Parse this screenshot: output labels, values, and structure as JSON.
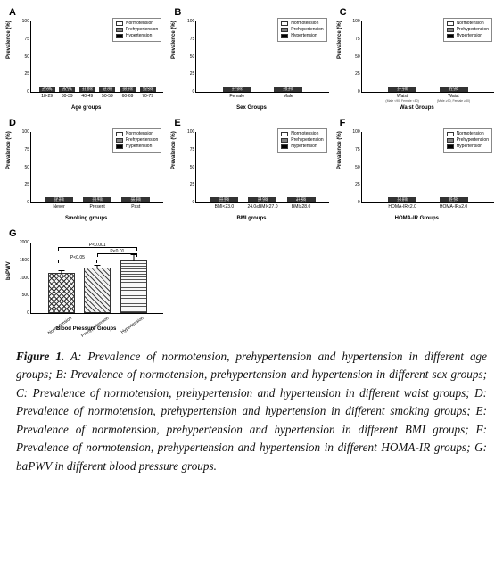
{
  "legend_items": [
    {
      "label": "Normotension",
      "color": "#ffffff"
    },
    {
      "label": "Prehypertension",
      "color": "#808080"
    },
    {
      "label": "Hypertension",
      "color": "#000000"
    }
  ],
  "yaxis_label": "Prevalence (%)",
  "yticks": [
    0,
    25,
    50,
    75,
    100
  ],
  "panelA": {
    "label": "A",
    "xaxis": "Age groups",
    "categories": [
      "18-29",
      "30-39",
      "40-49",
      "50-59",
      "60-69",
      "70-79"
    ],
    "series": [
      {
        "cat": "18-29",
        "normo": 73.4,
        "prehyp": 23.0,
        "hyp": 3.6,
        "labels": [
          "73.4%",
          "23.0%",
          "3.6%"
        ]
      },
      {
        "cat": "30-39",
        "normo": 61.5,
        "prehyp": 29.1,
        "hyp": 9.4,
        "labels": [
          "61.5%",
          "29.1%",
          "9.4%"
        ]
      },
      {
        "cat": "40-49",
        "normo": 51.0,
        "prehyp": 31.6,
        "hyp": 17.4,
        "labels": [
          "51.0%",
          "31.6%",
          "17.4%"
        ]
      },
      {
        "cat": "50-59",
        "normo": 42.1,
        "prehyp": 32.0,
        "hyp": 25.9,
        "labels": [
          "42.1%",
          "32.0%",
          "25.9%"
        ]
      },
      {
        "cat": "60-69",
        "normo": 36.3,
        "prehyp": 30.6,
        "hyp": 33.1,
        "labels": [
          "36.3%",
          "30.6%",
          "33.1%"
        ]
      },
      {
        "cat": "70-79",
        "normo": 31.5,
        "prehyp": 28.5,
        "hyp": 40.0,
        "labels": [
          "31.5%",
          "28.5%",
          "40.0%"
        ]
      }
    ]
  },
  "panelB": {
    "label": "B",
    "xaxis": "Sex Groups",
    "categories": [
      "Female",
      "Male"
    ],
    "series": [
      {
        "cat": "Female",
        "normo": 55.1,
        "prehyp": 21.9,
        "hyp": 23.0,
        "labels": [
          "55.1%",
          "21.9%",
          "23.0%"
        ]
      },
      {
        "cat": "Male",
        "normo": 46.5,
        "prehyp": 29.2,
        "hyp": 24.3,
        "labels": [
          "46.5%",
          "29.2%",
          "24.3%"
        ]
      }
    ]
  },
  "panelC": {
    "label": "C",
    "xaxis": "Waist Groups",
    "categories": [
      "Waist",
      "Waist"
    ],
    "sublabels": [
      "(Male <90, Female <80)",
      "(Male ≥90, Female ≥80)"
    ],
    "series": [
      {
        "cat": "Waist",
        "normo": 55.7,
        "prehyp": 27.1,
        "hyp": 17.2,
        "labels": [
          "55.7%",
          "27.1%",
          "17.2%"
        ]
      },
      {
        "cat": "Waist",
        "normo": 38.7,
        "prehyp": 31.3,
        "hyp": 30.0,
        "labels": [
          "38.7%",
          "31.3%",
          "30.0%"
        ]
      }
    ]
  },
  "panelD": {
    "label": "D",
    "xaxis": "Smoking groups",
    "categories": [
      "Never",
      "Present",
      "Past"
    ],
    "series": [
      {
        "cat": "Never",
        "normo": 44.5,
        "prehyp": 31.0,
        "hyp": 24.5,
        "labels": [
          "44.5%",
          "31.0%",
          "24.5%"
        ]
      },
      {
        "cat": "Present",
        "normo": 50.5,
        "prehyp": 28.7,
        "hyp": 20.8,
        "labels": [
          "50.5%",
          "28.7%",
          "20.8%"
        ]
      },
      {
        "cat": "Past",
        "normo": 46.8,
        "prehyp": 30.9,
        "hyp": 22.3,
        "labels": [
          "46.8%",
          "30.9%",
          "22.3%"
        ]
      }
    ]
  },
  "panelE": {
    "label": "E",
    "xaxis": "BMI groups",
    "categories": [
      "BMI<23.0",
      "24.0≤BMI<27.0",
      "BMI≥28.0"
    ],
    "series": [
      {
        "cat": "BMI<23.0",
        "normo": 55.0,
        "prehyp": 22.2,
        "hyp": 22.8,
        "labels": [
          "55.0%",
          "22.2%",
          "22.8%"
        ]
      },
      {
        "cat": "24.0≤BMI<27.0",
        "normo": 49.1,
        "prehyp": 27.3,
        "hyp": 23.6,
        "labels": [
          "49.1%",
          "27.3%",
          "23.6%"
        ]
      },
      {
        "cat": "BMI≥28.0",
        "normo": 40.7,
        "prehyp": 47.5,
        "hyp": 11.8,
        "labels": [
          "40.7%",
          "47.5%",
          "11.8%"
        ]
      }
    ]
  },
  "panelF": {
    "label": "F",
    "xaxis": "HOMA-IR Groups",
    "categories": [
      "HOMA-IR<2.0",
      "HOMA-IR≥2.0"
    ],
    "series": [
      {
        "cat": "HOMA-IR<2.0",
        "normo": 51.4,
        "prehyp": 29.6,
        "hyp": 19.0,
        "labels": [
          "51.4%",
          "29.6%",
          "19.0%"
        ]
      },
      {
        "cat": "HOMA-IR≥2.0",
        "normo": 21.3,
        "prehyp": 32.3,
        "hyp": 46.4,
        "labels": [
          "21.3%",
          "32.3%",
          "46.4%"
        ]
      }
    ]
  },
  "panelG": {
    "label": "G",
    "xaxis": "Blood Pressure Groups",
    "yaxis": "baPWV",
    "yticks": [
      0,
      500,
      1000,
      1500,
      2000
    ],
    "ylim": [
      0,
      2000
    ],
    "categories": [
      "Normotension",
      "Prehypertension",
      "Hypertension"
    ],
    "bars": [
      {
        "cat": "Normotension",
        "value": 1150,
        "err": 180,
        "pattern": "hatch-cross"
      },
      {
        "cat": "Prehypertension",
        "value": 1280,
        "err": 200,
        "pattern": "hatch-diag"
      },
      {
        "cat": "Hypertension",
        "value": 1500,
        "err": 260,
        "pattern": "hatch-horiz"
      }
    ],
    "sig": [
      {
        "from": 0,
        "to": 1,
        "text": "P<0.05",
        "y": 1520
      },
      {
        "from": 1,
        "to": 2,
        "text": "P<0.01",
        "y": 1700
      },
      {
        "from": 0,
        "to": 2,
        "text": "P<0.001",
        "y": 1880
      }
    ]
  },
  "caption": {
    "figlabel": "Figure 1.",
    "text": " A: Prevalence of normotension, prehypertension and hypertension in different age groups; B: Prevalence of normotension, prehypertension and hypertension in different sex groups; C: Prevalence of normotension, prehypertension and hypertension in different waist groups; D: Prevalence of normotension, prehypertension and hypertension in different smoking groups; E: Prevalence of normotension, prehypertension and hypertension in different BMI groups; F: Prevalence of normotension, prehypertension and hypertension in different HOMA-IR groups; G: baPWV in different blood pressure groups."
  },
  "colors": {
    "normo": "#ffffff",
    "prehyp": "#7a7a7a",
    "hyp": "#000000",
    "text": "#111111"
  }
}
